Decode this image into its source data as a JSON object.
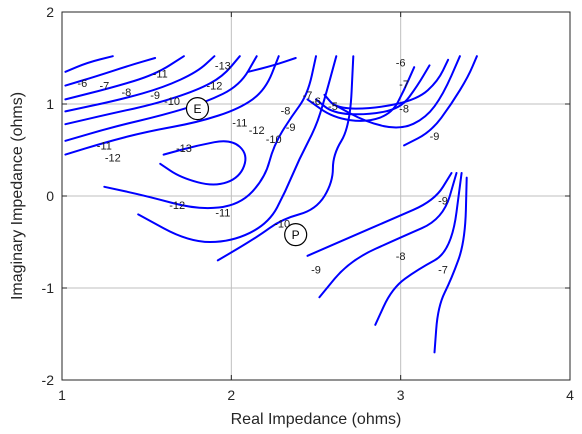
{
  "chart_data": {
    "type": "contour",
    "xlabel": "Real Impedance (ohms)",
    "ylabel": "Imaginary Impedance (ohms)",
    "xlim": [
      1,
      4
    ],
    "ylim": [
      -2,
      2
    ],
    "xticks": [
      1,
      2,
      3,
      4
    ],
    "yticks": [
      -2,
      -1,
      0,
      1,
      2
    ],
    "grid": true,
    "line_color": "#0000ff",
    "levels": [
      {
        "name": "-6",
        "points": [
          [
            1.02,
            1.35
          ],
          [
            1.15,
            1.45
          ],
          [
            1.3,
            1.52
          ]
        ]
      },
      {
        "name": "-7",
        "points": [
          [
            1.02,
            1.2
          ],
          [
            1.2,
            1.3
          ],
          [
            1.4,
            1.42
          ],
          [
            1.55,
            1.5
          ]
        ]
      },
      {
        "name": "-8",
        "points": [
          [
            1.02,
            1.05
          ],
          [
            1.3,
            1.18
          ],
          [
            1.55,
            1.32
          ],
          [
            1.72,
            1.52
          ]
        ]
      },
      {
        "name": "-9",
        "points": [
          [
            1.02,
            0.92
          ],
          [
            1.35,
            1.05
          ],
          [
            1.6,
            1.18
          ],
          [
            1.8,
            1.35
          ],
          [
            1.9,
            1.52
          ]
        ]
      },
      {
        "name": "-10",
        "points": [
          [
            1.02,
            0.78
          ],
          [
            1.3,
            0.9
          ],
          [
            1.55,
            1.0
          ],
          [
            1.8,
            1.15
          ],
          [
            1.95,
            1.3
          ],
          [
            2.05,
            1.52
          ]
        ]
      },
      {
        "name": "-11",
        "points": [
          [
            1.02,
            0.6
          ],
          [
            1.3,
            0.75
          ],
          [
            1.6,
            0.88
          ],
          [
            1.85,
            1.02
          ],
          [
            2.05,
            1.2
          ],
          [
            2.15,
            1.52
          ]
        ]
      },
      {
        "name": "-12",
        "points": [
          [
            1.02,
            0.45
          ],
          [
            1.25,
            0.58
          ],
          [
            1.5,
            0.7
          ],
          [
            1.8,
            0.8
          ],
          [
            2.05,
            0.95
          ],
          [
            2.2,
            1.15
          ],
          [
            2.28,
            1.52
          ]
        ]
      },
      {
        "name": "-13",
        "points": [
          [
            2.1,
            1.35
          ],
          [
            2.25,
            1.42
          ],
          [
            2.38,
            1.5
          ]
        ]
      },
      {
        "name": "-13",
        "points": [
          [
            1.6,
            0.45
          ],
          [
            1.8,
            0.55
          ],
          [
            2.0,
            0.62
          ],
          [
            2.1,
            0.45
          ],
          [
            2.05,
            0.2
          ],
          [
            1.9,
            0.1
          ],
          [
            1.7,
            0.2
          ],
          [
            1.58,
            0.35
          ]
        ]
      },
      {
        "name": "-12",
        "points": [
          [
            1.25,
            0.1
          ],
          [
            1.5,
            0.0
          ],
          [
            1.8,
            -0.15
          ],
          [
            2.05,
            -0.1
          ],
          [
            2.2,
            0.2
          ],
          [
            2.25,
            0.55
          ],
          [
            2.35,
            0.85
          ],
          [
            2.45,
            1.1
          ],
          [
            2.5,
            1.52
          ]
        ]
      },
      {
        "name": "-11",
        "points": [
          [
            1.45,
            -0.2
          ],
          [
            1.75,
            -0.5
          ],
          [
            2.0,
            -0.5
          ],
          [
            2.22,
            -0.3
          ],
          [
            2.32,
            0.05
          ],
          [
            2.4,
            0.4
          ],
          [
            2.5,
            0.75
          ],
          [
            2.55,
            1.05
          ],
          [
            2.62,
            1.52
          ]
        ]
      },
      {
        "name": "-10",
        "points": [
          [
            1.92,
            -0.7
          ],
          [
            2.15,
            -0.45
          ],
          [
            2.3,
            -0.25
          ],
          [
            2.5,
            -0.15
          ],
          [
            2.6,
            0.15
          ],
          [
            2.6,
            0.45
          ],
          [
            2.7,
            0.75
          ],
          [
            2.72,
            1.52
          ]
        ]
      },
      {
        "name": "-9",
        "points": [
          [
            2.45,
            -0.65
          ],
          [
            2.7,
            -0.45
          ],
          [
            2.95,
            -0.25
          ],
          [
            3.2,
            -0.05
          ],
          [
            3.3,
            0.25
          ]
        ]
      },
      {
        "name": "-8",
        "points": [
          [
            2.52,
            -1.1
          ],
          [
            2.7,
            -0.7
          ],
          [
            3.0,
            -0.45
          ],
          [
            3.25,
            -0.25
          ],
          [
            3.33,
            0.25
          ]
        ]
      },
      {
        "name": "-7",
        "points": [
          [
            2.85,
            -1.4
          ],
          [
            2.95,
            -1.0
          ],
          [
            3.1,
            -0.8
          ],
          [
            3.3,
            -0.6
          ],
          [
            3.36,
            0.25
          ]
        ]
      },
      {
        "name": "-6",
        "points": [
          [
            3.2,
            -1.7
          ],
          [
            3.22,
            -1.2
          ],
          [
            3.3,
            -0.9
          ],
          [
            3.38,
            -0.5
          ],
          [
            3.39,
            0.2
          ]
        ]
      },
      {
        "name": "-8",
        "points": [
          [
            2.45,
            1.05
          ],
          [
            2.6,
            0.85
          ],
          [
            2.8,
            0.8
          ],
          [
            2.95,
            0.9
          ],
          [
            3.02,
            1.15
          ],
          [
            3.08,
            1.4
          ]
        ]
      },
      {
        "name": "-7",
        "points": [
          [
            2.5,
            1.05
          ],
          [
            2.6,
            0.9
          ],
          [
            2.8,
            0.88
          ],
          [
            3.0,
            0.95
          ],
          [
            3.1,
            1.2
          ],
          [
            3.17,
            1.42
          ]
        ]
      },
      {
        "name": "-6",
        "points": [
          [
            2.55,
            1.1
          ],
          [
            2.62,
            0.95
          ],
          [
            2.85,
            0.95
          ],
          [
            3.1,
            1.05
          ],
          [
            3.22,
            1.25
          ],
          [
            3.28,
            1.48
          ]
        ]
      },
      {
        "name": "-9",
        "points": [
          [
            2.6,
            1.0
          ],
          [
            2.8,
            0.8
          ],
          [
            3.0,
            0.72
          ],
          [
            3.15,
            0.85
          ],
          [
            3.25,
            1.1
          ],
          [
            3.35,
            1.52
          ]
        ]
      },
      {
        "name": "-10",
        "points": [
          [
            3.02,
            0.55
          ],
          [
            3.18,
            0.7
          ],
          [
            3.3,
            1.0
          ],
          [
            3.4,
            1.3
          ],
          [
            3.45,
            1.52
          ]
        ]
      }
    ],
    "labels": [
      {
        "text": "-6",
        "x": 1.12,
        "y": 1.23
      },
      {
        "text": "-7",
        "x": 1.25,
        "y": 1.2
      },
      {
        "text": "-8",
        "x": 1.38,
        "y": 1.13
      },
      {
        "text": "-9",
        "x": 1.55,
        "y": 1.1
      },
      {
        "text": "-10",
        "x": 1.65,
        "y": 1.03
      },
      {
        "text": "-11",
        "x": 1.58,
        "y": 1.33
      },
      {
        "text": "-12",
        "x": 1.9,
        "y": 1.2
      },
      {
        "text": "-13",
        "x": 1.95,
        "y": 1.42
      },
      {
        "text": "-11",
        "x": 1.25,
        "y": 0.55
      },
      {
        "text": "-12",
        "x": 1.3,
        "y": 0.42
      },
      {
        "text": "-13",
        "x": 1.72,
        "y": 0.52
      },
      {
        "text": "-12",
        "x": 1.68,
        "y": -0.1
      },
      {
        "text": "-11",
        "x": 1.95,
        "y": -0.18
      },
      {
        "text": "-11",
        "x": 2.05,
        "y": 0.8
      },
      {
        "text": "-12",
        "x": 2.15,
        "y": 0.72
      },
      {
        "text": "-8",
        "x": 2.32,
        "y": 0.93
      },
      {
        "text": "-9",
        "x": 2.35,
        "y": 0.75
      },
      {
        "text": "-10",
        "x": 2.25,
        "y": 0.62
      },
      {
        "text": "-7",
        "x": 2.45,
        "y": 1.1
      },
      {
        "text": "-6",
        "x": 2.5,
        "y": 1.03
      },
      {
        "text": "-5",
        "x": 2.6,
        "y": 0.98
      },
      {
        "text": "-10",
        "x": 2.3,
        "y": -0.3
      },
      {
        "text": "-9",
        "x": 2.5,
        "y": -0.8
      },
      {
        "text": "-9",
        "x": 3.2,
        "y": 0.65
      },
      {
        "text": "-8",
        "x": 3.02,
        "y": 0.95
      },
      {
        "text": "-7",
        "x": 3.02,
        "y": 1.22
      },
      {
        "text": "-6",
        "x": 3.0,
        "y": 1.45
      },
      {
        "text": "-9",
        "x": 3.25,
        "y": -0.05
      },
      {
        "text": "-8",
        "x": 3.0,
        "y": -0.65
      },
      {
        "text": "-7",
        "x": 3.25,
        "y": -0.8
      }
    ],
    "markers": [
      {
        "label": "E",
        "x": 1.8,
        "y": 0.95
      },
      {
        "label": "P",
        "x": 2.38,
        "y": -0.42
      }
    ]
  }
}
